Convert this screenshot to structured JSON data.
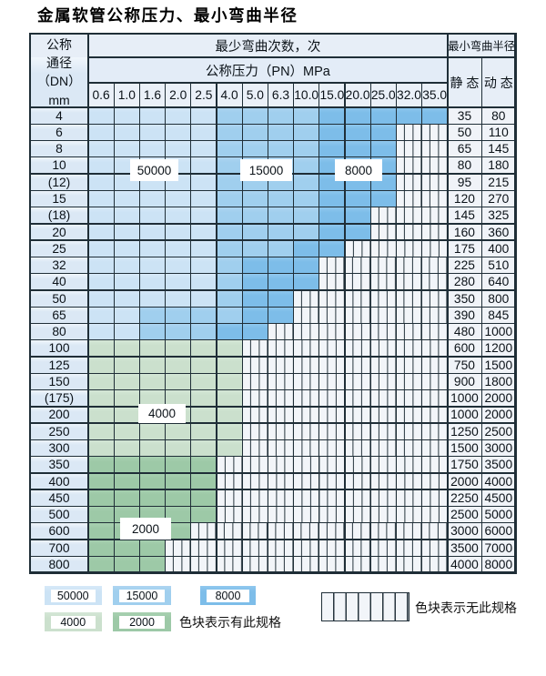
{
  "title": "金属软管公称压力、最小弯曲半径",
  "colors": {
    "grid": "#1f2e37",
    "band_50000_top": "#d7e9f8",
    "band_50000_bottom": "#cce3f5",
    "band_15000_top": "#add5f1",
    "band_15000_bottom": "#a0cfee",
    "band_8000_top": "#90c8ee",
    "band_8000_bottom": "#7dbde9",
    "band_4000_top": "#d4e7d6",
    "band_4000_bottom": "#cbe0cd",
    "band_2000_top": "#a8d1b1",
    "band_2000_bottom": "#9dc9a7",
    "hatch_bg": "#f2f5f9",
    "hatch_line": "#26343d",
    "header_bg": "#e7eef7",
    "header_bg2": "#e3ecf7",
    "header_bg3": "#eaf0f8",
    "dn_cell_top": "#f0f6fc",
    "dn_cell_bottom": "#dbe8f5",
    "value_cell_bg": "#f0f3f8",
    "label_box_bg": "#ffffff"
  },
  "header": {
    "dn_label_lines": [
      "公称",
      "通径",
      "（DN）",
      "mm"
    ],
    "cycles_label": "最少弯曲次数，次",
    "pressure_label": "公称压力（PN）MPa",
    "radius_label": "最小弯曲半径",
    "static_label": "静 态",
    "dynamic_label": "动 态",
    "pressure_columns": [
      "0.6",
      "1.0",
      "1.6",
      "2.0",
      "2.5",
      "4.0",
      "5.0",
      "6.3",
      "10.0",
      "15.0",
      "20.0",
      "25.0",
      "32.0",
      "35.0"
    ]
  },
  "chart_data": {
    "type": "table",
    "title": "金属软管公称压力、最小弯曲半径",
    "row_header": "公称通径（DN）mm",
    "column_group_header": "最少弯曲次数，次 / 公称压力（PN）MPa",
    "columns": [
      "0.6",
      "1.0",
      "1.6",
      "2.0",
      "2.5",
      "4.0",
      "5.0",
      "6.3",
      "10.0",
      "15.0",
      "20.0",
      "25.0",
      "32.0",
      "35.0"
    ],
    "radius_columns": [
      "静态",
      "动态"
    ],
    "cycle_categories": [
      "50000",
      "15000",
      "8000",
      "4000",
      "2000",
      "无此规格"
    ],
    "rows": [
      {
        "dn": "4",
        "static": "35",
        "dynamic": "80",
        "bands": [
          [
            "50000",
            1,
            5
          ],
          [
            "15000",
            6,
            9
          ],
          [
            "8000",
            10,
            14
          ]
        ]
      },
      {
        "dn": "6",
        "static": "50",
        "dynamic": "110",
        "bands": [
          [
            "50000",
            1,
            5
          ],
          [
            "15000",
            6,
            9
          ],
          [
            "8000",
            10,
            12
          ],
          [
            "none",
            13,
            14
          ]
        ]
      },
      {
        "dn": "8",
        "static": "65",
        "dynamic": "145",
        "bands": [
          [
            "50000",
            1,
            5
          ],
          [
            "15000",
            6,
            9
          ],
          [
            "8000",
            10,
            12
          ],
          [
            "none",
            13,
            14
          ]
        ]
      },
      {
        "dn": "10",
        "static": "80",
        "dynamic": "180",
        "bands": [
          [
            "50000",
            1,
            5
          ],
          [
            "15000",
            6,
            9
          ],
          [
            "8000",
            10,
            12
          ],
          [
            "none",
            13,
            14
          ]
        ]
      },
      {
        "dn": "(12)",
        "static": "95",
        "dynamic": "215",
        "bands": [
          [
            "50000",
            1,
            5
          ],
          [
            "15000",
            6,
            9
          ],
          [
            "8000",
            10,
            12
          ],
          [
            "none",
            13,
            14
          ]
        ]
      },
      {
        "dn": "15",
        "static": "120",
        "dynamic": "270",
        "bands": [
          [
            "50000",
            1,
            5
          ],
          [
            "15000",
            6,
            9
          ],
          [
            "8000",
            10,
            12
          ],
          [
            "none",
            13,
            14
          ]
        ]
      },
      {
        "dn": "(18)",
        "static": "145",
        "dynamic": "325",
        "bands": [
          [
            "50000",
            1,
            5
          ],
          [
            "15000",
            6,
            9
          ],
          [
            "8000",
            10,
            11
          ],
          [
            "none",
            12,
            14
          ]
        ]
      },
      {
        "dn": "20",
        "static": "160",
        "dynamic": "360",
        "bands": [
          [
            "50000",
            1,
            5
          ],
          [
            "15000",
            6,
            9
          ],
          [
            "8000",
            10,
            11
          ],
          [
            "none",
            12,
            14
          ]
        ]
      },
      {
        "dn": "25",
        "static": "175",
        "dynamic": "400",
        "bands": [
          [
            "50000",
            1,
            5
          ],
          [
            "15000",
            6,
            8
          ],
          [
            "8000",
            9,
            10
          ],
          [
            "none",
            11,
            14
          ]
        ]
      },
      {
        "dn": "32",
        "static": "225",
        "dynamic": "510",
        "bands": [
          [
            "50000",
            1,
            5
          ],
          [
            "15000",
            6,
            6
          ],
          [
            "8000",
            7,
            9
          ],
          [
            "none",
            10,
            14
          ]
        ]
      },
      {
        "dn": "40",
        "static": "280",
        "dynamic": "640",
        "bands": [
          [
            "50000",
            1,
            5
          ],
          [
            "15000",
            6,
            6
          ],
          [
            "8000",
            7,
            9
          ],
          [
            "none",
            10,
            14
          ]
        ]
      },
      {
        "dn": "50",
        "static": "350",
        "dynamic": "800",
        "bands": [
          [
            "50000",
            1,
            5
          ],
          [
            "15000",
            6,
            6
          ],
          [
            "8000",
            7,
            8
          ],
          [
            "none",
            9,
            14
          ]
        ]
      },
      {
        "dn": "65",
        "static": "390",
        "dynamic": "845",
        "bands": [
          [
            "50000",
            1,
            2
          ],
          [
            "15000",
            3,
            6
          ],
          [
            "8000",
            7,
            8
          ],
          [
            "none",
            9,
            14
          ]
        ]
      },
      {
        "dn": "80",
        "static": "480",
        "dynamic": "1000",
        "bands": [
          [
            "50000",
            1,
            2
          ],
          [
            "15000",
            3,
            5
          ],
          [
            "8000",
            6,
            7
          ],
          [
            "none",
            8,
            14
          ]
        ]
      },
      {
        "dn": "100",
        "static": "600",
        "dynamic": "1200",
        "bands": [
          [
            "4000",
            1,
            6
          ],
          [
            "none",
            7,
            14
          ]
        ]
      },
      {
        "dn": "125",
        "static": "750",
        "dynamic": "1500",
        "bands": [
          [
            "4000",
            1,
            6
          ],
          [
            "none",
            7,
            14
          ]
        ]
      },
      {
        "dn": "150",
        "static": "900",
        "dynamic": "1800",
        "bands": [
          [
            "4000",
            1,
            6
          ],
          [
            "none",
            7,
            14
          ]
        ]
      },
      {
        "dn": "(175)",
        "static": "1000",
        "dynamic": "2000",
        "bands": [
          [
            "4000",
            1,
            6
          ],
          [
            "none",
            7,
            14
          ]
        ]
      },
      {
        "dn": "200",
        "static": "1000",
        "dynamic": "2000",
        "bands": [
          [
            "4000",
            1,
            6
          ],
          [
            "none",
            7,
            14
          ]
        ]
      },
      {
        "dn": "250",
        "static": "1250",
        "dynamic": "2500",
        "bands": [
          [
            "4000",
            1,
            6
          ],
          [
            "none",
            7,
            14
          ]
        ]
      },
      {
        "dn": "300",
        "static": "1500",
        "dynamic": "3000",
        "bands": [
          [
            "4000",
            1,
            6
          ],
          [
            "none",
            7,
            14
          ]
        ]
      },
      {
        "dn": "350",
        "static": "1750",
        "dynamic": "3500",
        "bands": [
          [
            "2000",
            1,
            5
          ],
          [
            "none",
            6,
            14
          ]
        ]
      },
      {
        "dn": "400",
        "static": "2000",
        "dynamic": "4000",
        "bands": [
          [
            "2000",
            1,
            5
          ],
          [
            "none",
            6,
            14
          ]
        ]
      },
      {
        "dn": "450",
        "static": "2250",
        "dynamic": "4500",
        "bands": [
          [
            "2000",
            1,
            5
          ],
          [
            "none",
            6,
            14
          ]
        ]
      },
      {
        "dn": "500",
        "static": "2500",
        "dynamic": "5000",
        "bands": [
          [
            "2000",
            1,
            5
          ],
          [
            "none",
            6,
            14
          ]
        ]
      },
      {
        "dn": "600",
        "static": "3000",
        "dynamic": "6000",
        "bands": [
          [
            "2000",
            1,
            4
          ],
          [
            "none",
            5,
            14
          ]
        ]
      },
      {
        "dn": "700",
        "static": "3500",
        "dynamic": "7000",
        "bands": [
          [
            "2000",
            1,
            3
          ],
          [
            "none",
            4,
            14
          ]
        ]
      },
      {
        "dn": "800",
        "static": "4000",
        "dynamic": "8000",
        "bands": [
          [
            "2000",
            1,
            3
          ],
          [
            "none",
            4,
            14
          ]
        ]
      }
    ],
    "overlay_labels": [
      "50000",
      "15000",
      "8000",
      "4000",
      "2000"
    ]
  },
  "legend": {
    "items": [
      {
        "value": "50000",
        "category": "band_50000"
      },
      {
        "value": "15000",
        "category": "band_15000"
      },
      {
        "value": "8000",
        "category": "band_8000"
      },
      {
        "value": "4000",
        "category": "band_4000"
      },
      {
        "value": "2000",
        "category": "band_2000"
      }
    ],
    "available_note": "色块表示有此规格",
    "unavailable_note": "色块表示无此规格"
  }
}
